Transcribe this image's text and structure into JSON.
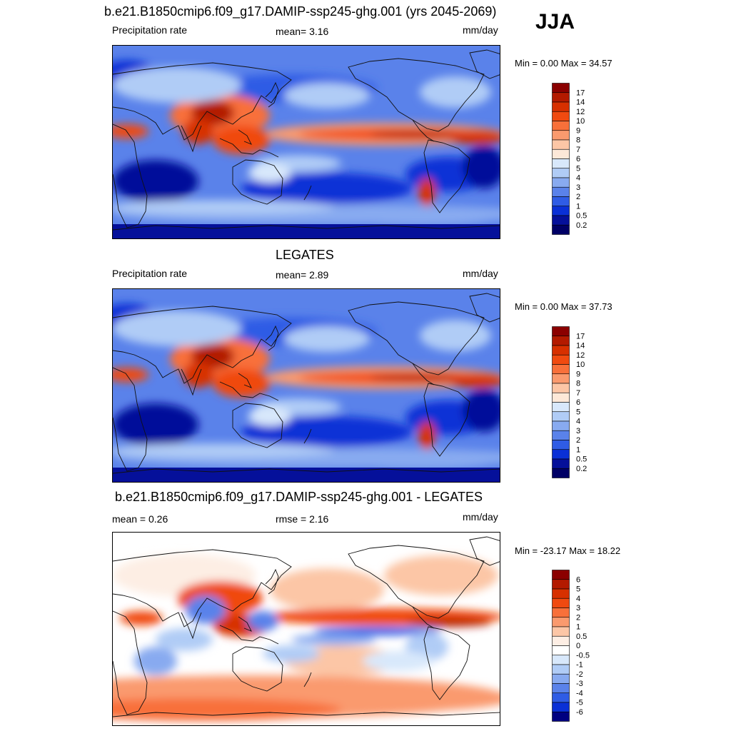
{
  "season": "JJA",
  "panels": [
    {
      "title": "b.e21.B1850cmip6.f09_g17.DAMIP-ssp245-ghg.001 (yrs 2045-2069)",
      "left_label": "Precipitation rate",
      "center_label": "mean=   3.16",
      "units": "mm/day",
      "minmax": "Min =   0.00 Max =  34.57",
      "colorbar": {
        "levels": [
          "17",
          "14",
          "12",
          "10",
          "9",
          "8",
          "7",
          "6",
          "5",
          "4",
          "3",
          "2",
          "1",
          "0.5",
          "0.2"
        ],
        "colors": [
          "#8b0000",
          "#b31a00",
          "#d73000",
          "#f04a10",
          "#f8703a",
          "#fa9a6e",
          "#fcc6a6",
          "#fde8d8",
          "#d8e8fb",
          "#b0ccf6",
          "#88aaf0",
          "#5a82ea",
          "#2f5ce5",
          "#0a30d6",
          "#05109a",
          "#000066"
        ]
      },
      "field_type": "precip"
    },
    {
      "title": "LEGATES",
      "left_label": "Precipitation rate",
      "center_label": "mean=   2.89",
      "units": "mm/day",
      "minmax": "Min =   0.00 Max =  37.73",
      "colorbar": {
        "levels": [
          "17",
          "14",
          "12",
          "10",
          "9",
          "8",
          "7",
          "6",
          "5",
          "4",
          "3",
          "2",
          "1",
          "0.5",
          "0.2"
        ],
        "colors": [
          "#8b0000",
          "#b31a00",
          "#d73000",
          "#f04a10",
          "#f8703a",
          "#fa9a6e",
          "#fcc6a6",
          "#fde8d8",
          "#d8e8fb",
          "#b0ccf6",
          "#88aaf0",
          "#5a82ea",
          "#2f5ce5",
          "#0a30d6",
          "#05109a",
          "#000066"
        ]
      },
      "field_type": "precip"
    },
    {
      "title": "b.e21.B1850cmip6.f09_g17.DAMIP-ssp245-ghg.001 - LEGATES",
      "left_label": "mean =   0.26",
      "center_label": "rmse =   2.16",
      "units": "mm/day",
      "minmax": "Min = -23.17 Max =  18.22",
      "colorbar": {
        "levels": [
          "6",
          "5",
          "4",
          "3",
          "2",
          "1",
          "0.5",
          "0",
          "-0.5",
          "-1",
          "-2",
          "-3",
          "-4",
          "-5",
          "-6"
        ],
        "colors": [
          "#8b0000",
          "#b31a00",
          "#d73000",
          "#f04a10",
          "#f8703a",
          "#fa9a6e",
          "#fcc6a6",
          "#fdeee4",
          "#ffffff",
          "#d8e8fb",
          "#b0ccf6",
          "#88aaf0",
          "#5a82ea",
          "#2f5ce5",
          "#0a30d6",
          "#000080"
        ]
      },
      "field_type": "diff"
    }
  ]
}
